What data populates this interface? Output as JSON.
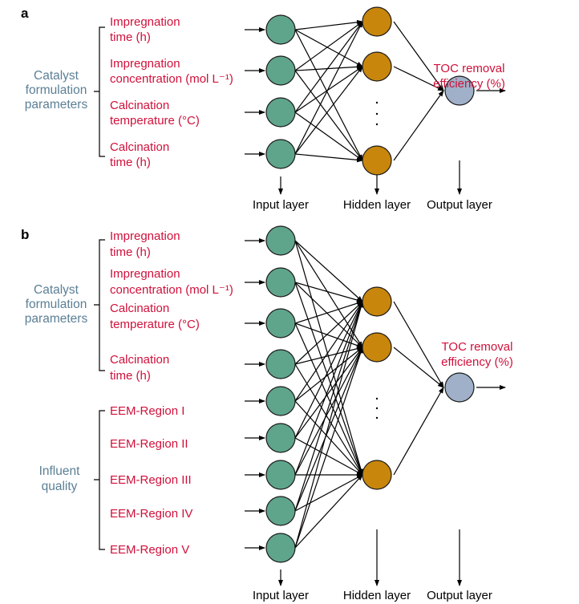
{
  "colors": {
    "input_node": "#5fa58c",
    "hidden_node": "#c8860c",
    "output_node": "#9fb0c8",
    "variable_text": "#d0103a",
    "group_text": "#5b7f95"
  },
  "panel_a": {
    "label": "a",
    "group": [
      "Catalyst",
      "formulation",
      "parameters"
    ],
    "inputs": [
      [
        "Impregnation",
        "time (h)"
      ],
      [
        "Impregnation",
        "concentration (mol L⁻¹)"
      ],
      [
        "Calcination",
        "temperature (°C)"
      ],
      [
        "Calcination",
        "time (h)"
      ]
    ],
    "output": [
      "TOC removal",
      "efficiency (%)"
    ],
    "layers": {
      "input": "Input layer",
      "hidden": "Hidden layer",
      "output": "Output layer"
    }
  },
  "panel_b": {
    "label": "b",
    "group1": [
      "Catalyst",
      "formulation",
      "parameters"
    ],
    "group2": [
      "Influent",
      "quality"
    ],
    "inputs": [
      [
        "Impregnation",
        "time (h)"
      ],
      [
        "Impregnation",
        "concentration (mol L⁻¹)"
      ],
      [
        "Calcination",
        "temperature (°C)"
      ],
      [
        "Calcination",
        "time (h)"
      ]
    ],
    "eem": [
      "EEM-Region I",
      "EEM-Region II",
      "EEM-Region III",
      "EEM-Region IV",
      "EEM-Region V"
    ],
    "output": [
      "TOC removal",
      "efficiency (%)"
    ],
    "layers": {
      "input": "Input layer",
      "hidden": "Hidden layer",
      "output": "Output layer"
    }
  }
}
